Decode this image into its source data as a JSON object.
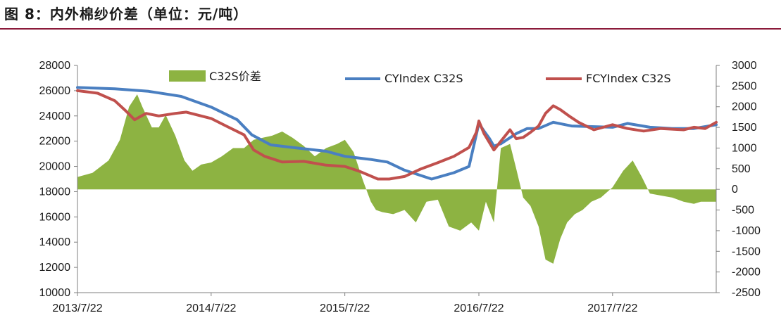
{
  "figure": {
    "title": "图 8：内外棉纱价差（单位：元/吨）"
  },
  "colors": {
    "spread": "#8db342",
    "cy": "#4a7fc1",
    "fcy": "#c0504d",
    "axis": "#7f7f7f"
  },
  "chart_data": {
    "type": "line",
    "title": "",
    "xlabel": "",
    "ylabel": "",
    "left_axis": {
      "ylim": [
        10000,
        28000
      ],
      "ticks": [
        "28000",
        "26000",
        "24000",
        "22000",
        "20000",
        "18000",
        "16000",
        "14000",
        "12000",
        "10000"
      ]
    },
    "right_axis": {
      "ylim": [
        -2500,
        3000
      ],
      "ticks": [
        "3000",
        "2500",
        "2000",
        "1500",
        "1000",
        "500",
        "0",
        "-500",
        "-1000",
        "-1500",
        "-2000",
        "-2500"
      ]
    },
    "x_ticks": [
      "2013/7/22",
      "2014/7/22",
      "2015/7/22",
      "2016/7/22",
      "2017/7/22"
    ],
    "x_range": [
      "2013/7/22",
      "2018/5/1"
    ],
    "legend": [
      "C32S价差",
      "CYIndex C32S",
      "FCYIndex C32S"
    ],
    "series": [
      {
        "name": "C32S价差",
        "type": "area",
        "axis": "right",
        "x": [
          "2013-07-22",
          "2013-09-01",
          "2013-10-15",
          "2013-11-15",
          "2013-12-10",
          "2014-01-01",
          "2014-01-15",
          "2014-02-10",
          "2014-03-01",
          "2014-03-20",
          "2014-04-15",
          "2014-05-10",
          "2014-06-01",
          "2014-06-25",
          "2014-07-22",
          "2014-08-20",
          "2014-09-20",
          "2014-10-20",
          "2014-11-15",
          "2014-12-10",
          "2015-01-05",
          "2015-02-01",
          "2015-03-01",
          "2015-04-01",
          "2015-05-01",
          "2015-06-01",
          "2015-07-01",
          "2015-07-22",
          "2015-08-15",
          "2015-09-10",
          "2015-10-01",
          "2015-10-15",
          "2015-11-01",
          "2015-12-01",
          "2016-01-01",
          "2016-02-01",
          "2016-03-01",
          "2016-04-01",
          "2016-05-01",
          "2016-06-01",
          "2016-07-01",
          "2016-07-22",
          "2016-08-10",
          "2016-09-01",
          "2016-09-20",
          "2016-10-15",
          "2016-11-01",
          "2016-11-20",
          "2016-12-10",
          "2017-01-01",
          "2017-01-20",
          "2017-02-10",
          "2017-03-01",
          "2017-03-20",
          "2017-04-10",
          "2017-05-01",
          "2017-05-25",
          "2017-06-20",
          "2017-07-22",
          "2017-08-20",
          "2017-09-15",
          "2017-10-10",
          "2017-11-01",
          "2017-12-01",
          "2018-01-01",
          "2018-02-01",
          "2018-03-01",
          "2018-03-20",
          "2018-04-10",
          "2018-05-01"
        ],
        "y": [
          300,
          400,
          700,
          1200,
          2000,
          2300,
          2000,
          1500,
          1500,
          1800,
          1300,
          700,
          450,
          600,
          650,
          800,
          1000,
          1000,
          1200,
          1250,
          1300,
          1400,
          1250,
          1050,
          800,
          1000,
          1100,
          1200,
          900,
          200,
          -300,
          -500,
          -550,
          -600,
          -500,
          -800,
          -300,
          -250,
          -900,
          -1000,
          -800,
          -1000,
          -300,
          -800,
          1000,
          1100,
          500,
          -200,
          -400,
          -900,
          -1700,
          -1800,
          -1200,
          -800,
          -600,
          -500,
          -300,
          -200,
          50,
          450,
          700,
          300,
          -100,
          -150,
          -200,
          -300,
          -350,
          -300,
          -300,
          -300
        ]
      },
      {
        "name": "CYIndex C32S",
        "type": "line",
        "axis": "left",
        "x": [
          "2013-07-22",
          "2013-11-01",
          "2014-02-01",
          "2014-05-01",
          "2014-07-22",
          "2014-10-01",
          "2014-11-10",
          "2015-01-01",
          "2015-03-01",
          "2015-06-01",
          "2015-07-22",
          "2015-10-01",
          "2015-11-15",
          "2016-01-01",
          "2016-03-15",
          "2016-05-15",
          "2016-06-25",
          "2016-07-22",
          "2016-08-05",
          "2016-08-20",
          "2016-09-01",
          "2016-09-20",
          "2016-11-01",
          "2016-12-01",
          "2017-01-01",
          "2017-02-10",
          "2017-04-01",
          "2017-07-22",
          "2017-09-01",
          "2017-11-01",
          "2018-01-01",
          "2018-03-01",
          "2018-05-01"
        ],
        "y": [
          26250,
          26150,
          25950,
          25550,
          24700,
          23700,
          22500,
          21700,
          21500,
          21200,
          20800,
          20550,
          20350,
          19700,
          19000,
          19500,
          20000,
          23400,
          22800,
          22200,
          21600,
          21800,
          22600,
          23000,
          23000,
          23500,
          23200,
          23100,
          23400,
          23100,
          23000,
          23000,
          23300
        ]
      },
      {
        "name": "FCYIndex C32S",
        "type": "line",
        "axis": "left",
        "x": [
          "2013-07-22",
          "2013-09-15",
          "2013-11-01",
          "2013-12-01",
          "2013-12-25",
          "2014-01-25",
          "2014-03-01",
          "2014-04-15",
          "2014-05-15",
          "2014-07-22",
          "2014-09-01",
          "2014-10-20",
          "2014-11-15",
          "2014-12-15",
          "2015-02-01",
          "2015-04-01",
          "2015-06-01",
          "2015-07-22",
          "2015-09-01",
          "2015-10-20",
          "2015-11-20",
          "2016-01-01",
          "2016-02-15",
          "2016-04-01",
          "2016-05-15",
          "2016-06-25",
          "2016-07-15",
          "2016-07-22",
          "2016-08-05",
          "2016-09-01",
          "2016-09-20",
          "2016-10-15",
          "2016-11-01",
          "2016-11-20",
          "2016-12-10",
          "2017-01-01",
          "2017-01-20",
          "2017-02-10",
          "2017-03-01",
          "2017-03-25",
          "2017-04-20",
          "2017-06-01",
          "2017-07-22",
          "2017-09-01",
          "2017-10-15",
          "2017-12-01",
          "2018-02-01",
          "2018-03-01",
          "2018-04-01",
          "2018-05-01"
        ],
        "y": [
          26000,
          25800,
          25200,
          24400,
          23700,
          24200,
          24000,
          24200,
          24300,
          23800,
          23200,
          22500,
          21300,
          20800,
          20350,
          20400,
          20100,
          20000,
          19600,
          19000,
          19000,
          19200,
          19800,
          20300,
          20800,
          21500,
          22700,
          23600,
          22600,
          21300,
          22000,
          22900,
          22200,
          22300,
          22700,
          23200,
          24200,
          24800,
          24500,
          24000,
          23500,
          22900,
          23300,
          23000,
          22800,
          23000,
          22900,
          23100,
          23000,
          23500
        ]
      }
    ]
  }
}
